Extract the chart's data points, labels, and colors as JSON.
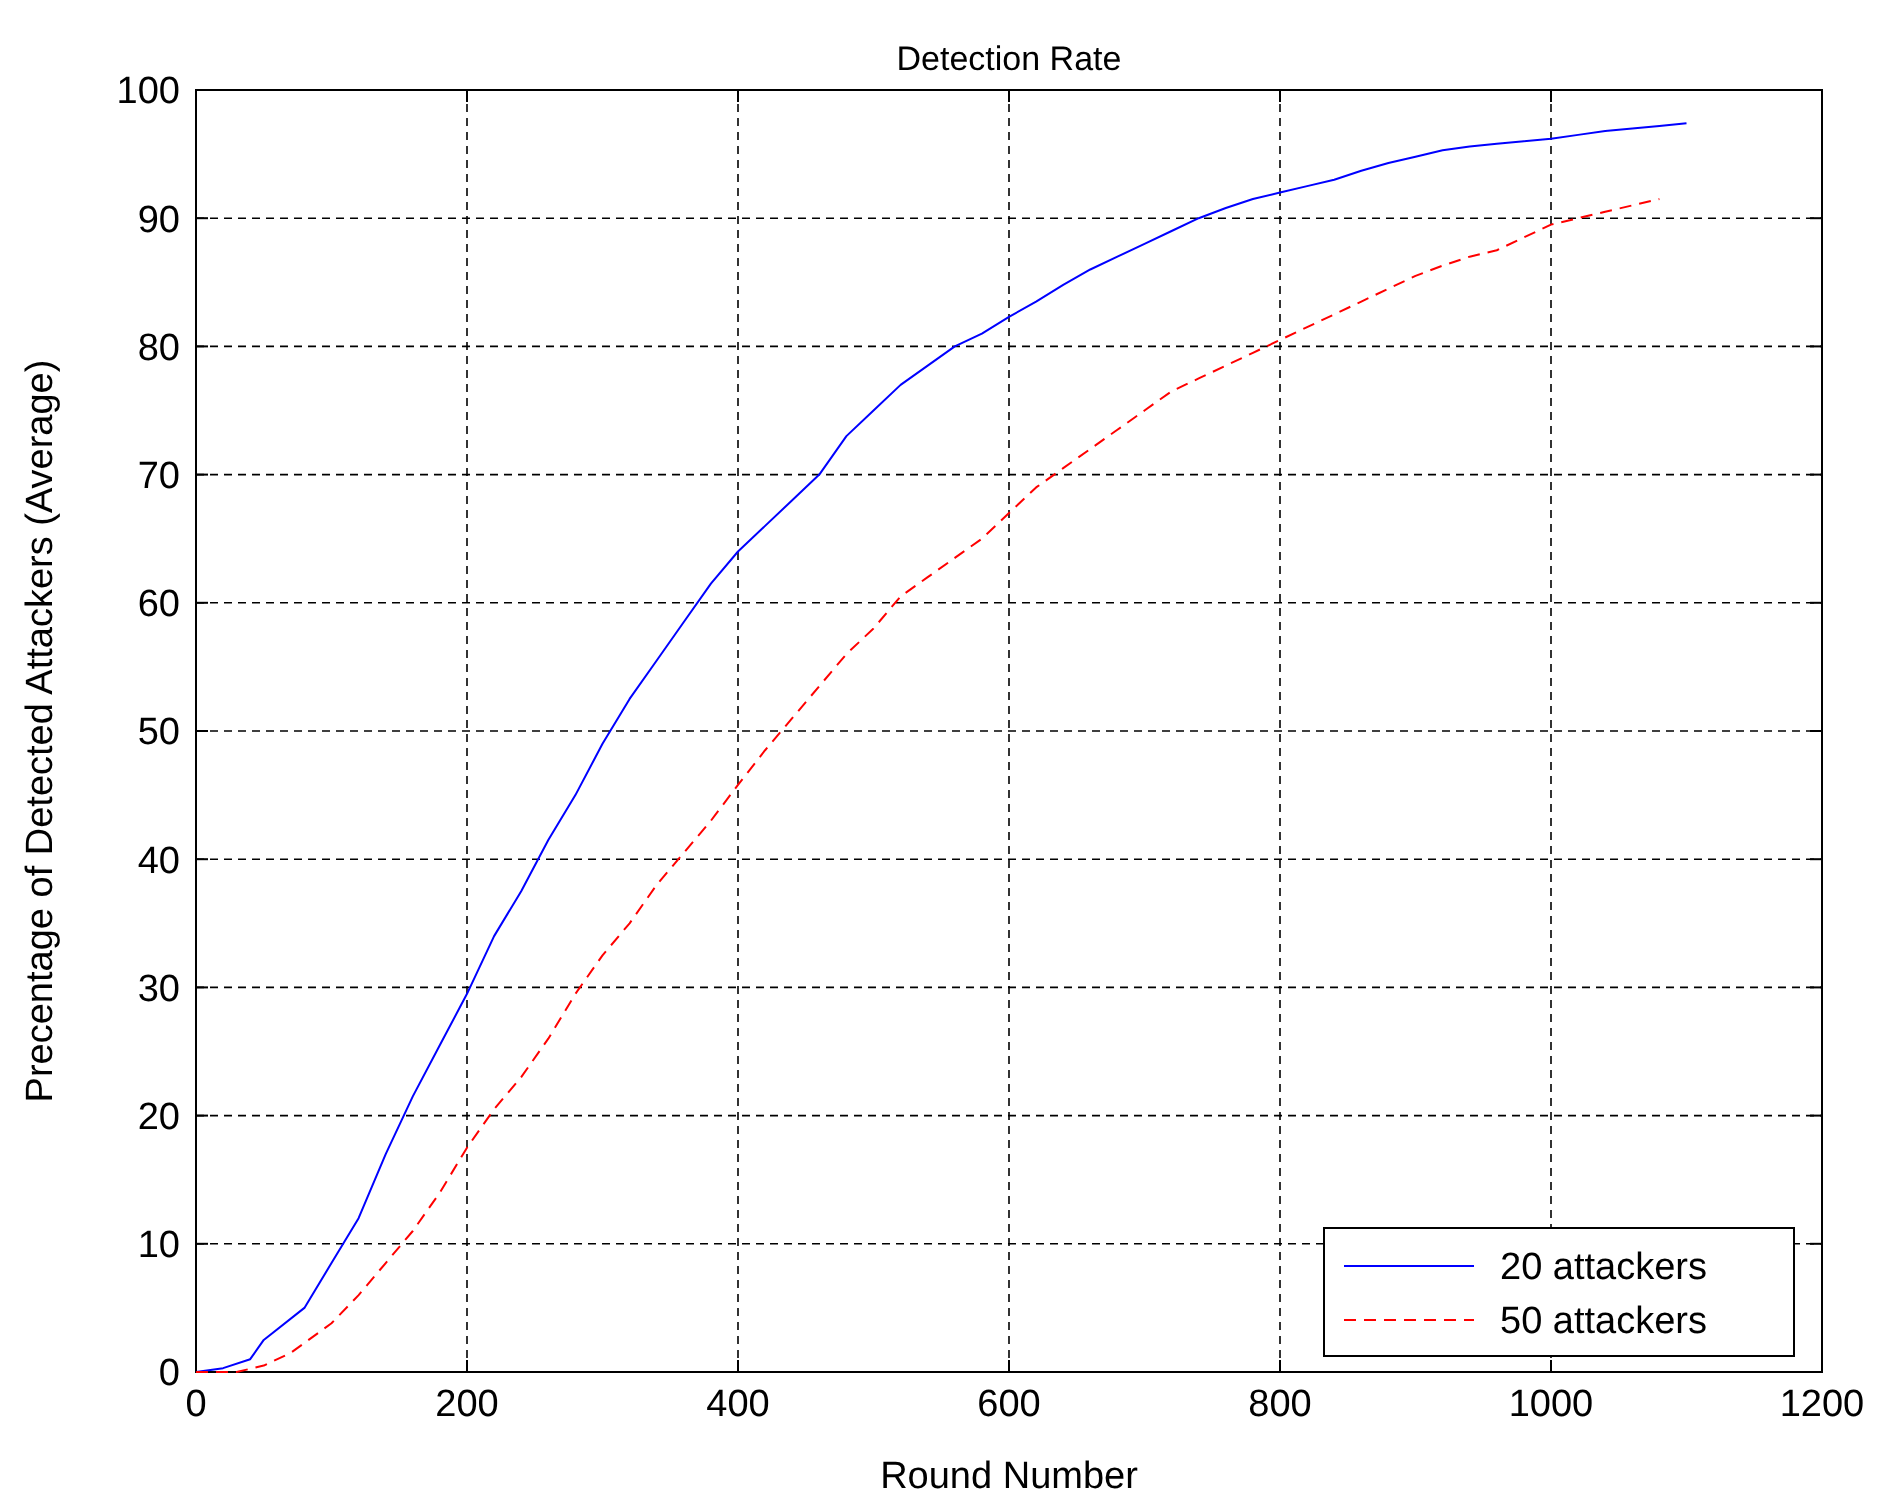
{
  "chart_data": {
    "type": "line",
    "title": "Detection Rate",
    "xlabel": "Round Number",
    "ylabel": "Precentage of Detected Attackers (Average)",
    "xlim": [
      0,
      1200
    ],
    "xticks": [
      0,
      200,
      400,
      600,
      800,
      1000,
      1200
    ],
    "ylim": [
      0,
      100
    ],
    "yticks": [
      0,
      10,
      20,
      30,
      40,
      50,
      60,
      70,
      80,
      90,
      100
    ],
    "grid": true,
    "legend": "bottom right",
    "series": [
      {
        "name": "20 attackers",
        "color": "#0000ff",
        "line_style": "solid",
        "x": [
          0,
          20,
          40,
          50,
          80,
          100,
          120,
          140,
          160,
          180,
          200,
          220,
          240,
          260,
          280,
          300,
          320,
          340,
          360,
          380,
          400,
          420,
          440,
          460,
          480,
          500,
          520,
          540,
          560,
          580,
          600,
          620,
          640,
          660,
          680,
          700,
          720,
          740,
          760,
          780,
          800,
          820,
          840,
          860,
          880,
          900,
          920,
          940,
          960,
          980,
          1000,
          1020,
          1040,
          1060,
          1080,
          1100
        ],
        "values": [
          0,
          0.3,
          1,
          2.5,
          5,
          8.5,
          12,
          17,
          21.5,
          25.5,
          29.5,
          34,
          37.5,
          41.5,
          45,
          49,
          52.5,
          55.5,
          58.5,
          61.5,
          64,
          66,
          68,
          70,
          73,
          75,
          77,
          78.5,
          80,
          81,
          82.3,
          83.5,
          84.8,
          86,
          87,
          88,
          89,
          90,
          90.8,
          91.5,
          92,
          92.5,
          93,
          93.7,
          94.3,
          94.8,
          95.3,
          95.6,
          95.8,
          96,
          96.2,
          96.5,
          96.8,
          97,
          97.2,
          97.4
        ]
      },
      {
        "name": "50 attackers",
        "color": "#ff0000",
        "line_style": "dashed",
        "x": [
          0,
          30,
          50,
          70,
          100,
          120,
          140,
          160,
          180,
          200,
          220,
          240,
          260,
          280,
          300,
          320,
          340,
          360,
          380,
          400,
          420,
          440,
          460,
          480,
          500,
          520,
          540,
          560,
          580,
          600,
          620,
          640,
          660,
          680,
          700,
          720,
          740,
          760,
          780,
          800,
          820,
          840,
          860,
          880,
          900,
          920,
          940,
          960,
          980,
          1000,
          1020,
          1040,
          1060,
          1080
        ],
        "values": [
          0,
          0,
          0.5,
          1.5,
          3.8,
          6,
          8.5,
          11,
          14,
          17.5,
          20.5,
          23,
          26,
          29.5,
          32.5,
          35,
          38,
          40.5,
          43,
          45.8,
          48.5,
          51,
          53.5,
          56,
          58,
          60.5,
          62,
          63.5,
          65,
          67,
          69,
          70.5,
          72,
          73.5,
          75,
          76.5,
          77.5,
          78.5,
          79.5,
          80.5,
          81.5,
          82.5,
          83.5,
          84.5,
          85.5,
          86.3,
          87,
          87.5,
          88.5,
          89.5,
          90,
          90.5,
          91,
          91.5
        ]
      }
    ]
  }
}
